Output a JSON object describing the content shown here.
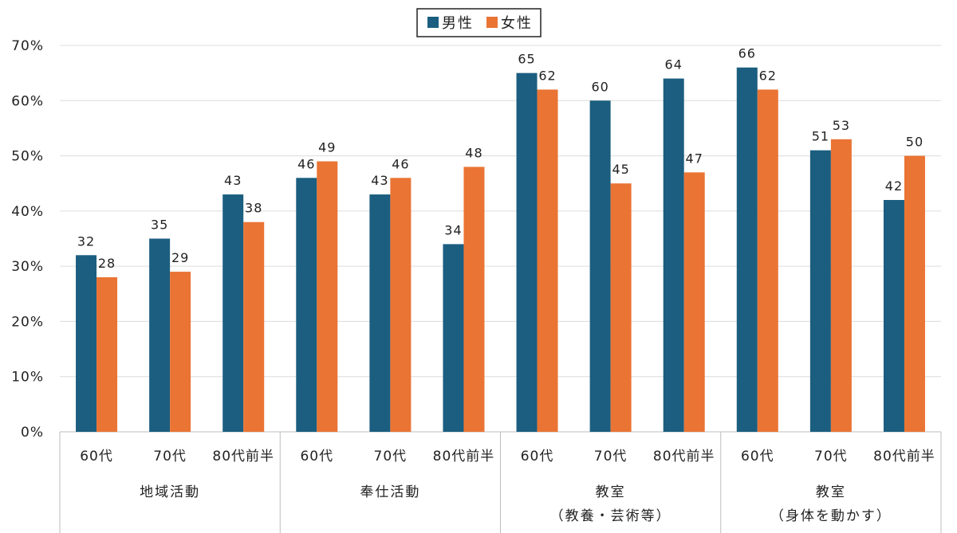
{
  "chart_data": {
    "type": "bar",
    "title": "",
    "xlabel": "",
    "ylabel": "",
    "ylim": [
      0,
      70
    ],
    "y_ticks": [
      "0%",
      "10%",
      "20%",
      "30%",
      "40%",
      "50%",
      "60%",
      "70%"
    ],
    "grid": true,
    "legend_position": "top-center",
    "groups": [
      {
        "label_lines": [
          "地域活動"
        ],
        "categories": [
          "60代",
          "70代",
          "80代前半"
        ]
      },
      {
        "label_lines": [
          "奉仕活動"
        ],
        "categories": [
          "60代",
          "70代",
          "80代前半"
        ]
      },
      {
        "label_lines": [
          "教室",
          "（教養・芸術等）"
        ],
        "categories": [
          "60代",
          "70代",
          "80代前半"
        ]
      },
      {
        "label_lines": [
          "教室",
          "（身体を動かす）"
        ],
        "categories": [
          "60代",
          "70代",
          "80代前半"
        ]
      }
    ],
    "series": [
      {
        "name": "男性",
        "color": "#1b5e80",
        "values": [
          32,
          35,
          43,
          46,
          43,
          34,
          65,
          60,
          64,
          66,
          51,
          42
        ]
      },
      {
        "name": "女性",
        "color": "#ea7434",
        "values": [
          28,
          29,
          38,
          49,
          46,
          48,
          62,
          45,
          47,
          62,
          53,
          50
        ]
      }
    ]
  }
}
